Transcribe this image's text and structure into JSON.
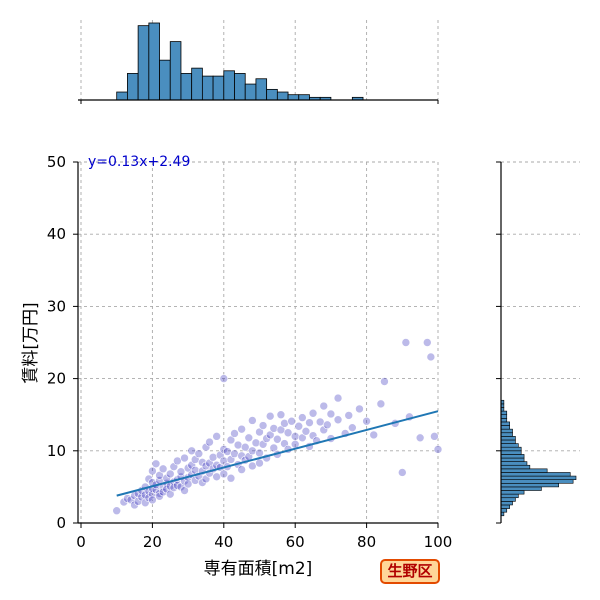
{
  "chart_data": {
    "type": "scatter",
    "title": "",
    "xlabel": "専有面積[m2]",
    "ylabel": "賃料[万円]",
    "xlim": [
      0,
      100
    ],
    "ylim": [
      0,
      50
    ],
    "x_ticks": [
      "0",
      "20",
      "40",
      "60",
      "80",
      "100"
    ],
    "y_ticks": [
      "0",
      "10",
      "20",
      "30",
      "40",
      "50"
    ],
    "grid": true,
    "regression": {
      "label": "y=0.13x+2.49",
      "slope": 0.13,
      "intercept": 2.49,
      "x_range": [
        10,
        100
      ]
    },
    "badge": "生野区",
    "colors": {
      "points": "#3f38c0",
      "line": "#1f77b4",
      "bars": "#4a8ebf",
      "equation": "#0000cc",
      "badge_fill": "#ffd699",
      "badge_border": "#e34a00"
    },
    "series": [
      {
        "points": [
          [
            10,
            1.7
          ],
          [
            12,
            2.9
          ],
          [
            13,
            3.4
          ],
          [
            14,
            3.2
          ],
          [
            15,
            3.8
          ],
          [
            15,
            2.5
          ],
          [
            16,
            4.1
          ],
          [
            16,
            3.0
          ],
          [
            17,
            3.6
          ],
          [
            17,
            4.5
          ],
          [
            18,
            3.9
          ],
          [
            18,
            5.0
          ],
          [
            18,
            2.8
          ],
          [
            19,
            4.4
          ],
          [
            19,
            6.1
          ],
          [
            19,
            3.5
          ],
          [
            20,
            4.0
          ],
          [
            20,
            4.8
          ],
          [
            20,
            5.6
          ],
          [
            20,
            3.2
          ],
          [
            20,
            7.2
          ],
          [
            21,
            4.6
          ],
          [
            21,
            5.3
          ],
          [
            21,
            8.2
          ],
          [
            22,
            4.1
          ],
          [
            22,
            5.9
          ],
          [
            22,
            6.6
          ],
          [
            22,
            3.7
          ],
          [
            23,
            5.0
          ],
          [
            23,
            4.3
          ],
          [
            23,
            7.5
          ],
          [
            24,
            5.5
          ],
          [
            24,
            6.2
          ],
          [
            24,
            4.7
          ],
          [
            25,
            5.1
          ],
          [
            25,
            6.8
          ],
          [
            25,
            4.0
          ],
          [
            26,
            5.7
          ],
          [
            26,
            7.8
          ],
          [
            26,
            4.9
          ],
          [
            27,
            6.0
          ],
          [
            27,
            5.2
          ],
          [
            27,
            8.6
          ],
          [
            28,
            6.4
          ],
          [
            28,
            5.0
          ],
          [
            28,
            7.1
          ],
          [
            29,
            5.8
          ],
          [
            29,
            9.0
          ],
          [
            29,
            4.5
          ],
          [
            30,
            6.3
          ],
          [
            30,
            7.6
          ],
          [
            30,
            5.4
          ],
          [
            31,
            8.0
          ],
          [
            31,
            6.7
          ],
          [
            31,
            10.0
          ],
          [
            32,
            5.9
          ],
          [
            32,
            7.3
          ],
          [
            32,
            8.8
          ],
          [
            33,
            6.5
          ],
          [
            33,
            9.6
          ],
          [
            34,
            7.2
          ],
          [
            34,
            5.6
          ],
          [
            34,
            8.4
          ],
          [
            35,
            7.9
          ],
          [
            35,
            6.1
          ],
          [
            35,
            10.5
          ],
          [
            36,
            8.3
          ],
          [
            36,
            6.9
          ],
          [
            36,
            11.2
          ],
          [
            37,
            7.5
          ],
          [
            37,
            9.1
          ],
          [
            38,
            8.0
          ],
          [
            38,
            6.4
          ],
          [
            38,
            12.0
          ],
          [
            39,
            9.4
          ],
          [
            39,
            7.7
          ],
          [
            40,
            8.6
          ],
          [
            40,
            10.2
          ],
          [
            40,
            6.8
          ],
          [
            40,
            20.0
          ],
          [
            41,
            9.9
          ],
          [
            41,
            7.8
          ],
          [
            42,
            8.8
          ],
          [
            42,
            11.5
          ],
          [
            42,
            6.2
          ],
          [
            43,
            9.6
          ],
          [
            43,
            12.4
          ],
          [
            44,
            8.1
          ],
          [
            44,
            10.8
          ],
          [
            45,
            9.3
          ],
          [
            45,
            13.0
          ],
          [
            45,
            7.4
          ],
          [
            46,
            10.5
          ],
          [
            46,
            8.7
          ],
          [
            47,
            11.8
          ],
          [
            47,
            9.2
          ],
          [
            48,
            10.0
          ],
          [
            48,
            14.2
          ],
          [
            48,
            7.9
          ],
          [
            49,
            11.1
          ],
          [
            50,
            9.7
          ],
          [
            50,
            12.6
          ],
          [
            50,
            8.3
          ],
          [
            51,
            10.9
          ],
          [
            51,
            13.5
          ],
          [
            52,
            11.7
          ],
          [
            52,
            9.0
          ],
          [
            53,
            12.2
          ],
          [
            53,
            14.8
          ],
          [
            54,
            10.4
          ],
          [
            54,
            13.1
          ],
          [
            55,
            11.6
          ],
          [
            55,
            9.5
          ],
          [
            56,
            12.9
          ],
          [
            56,
            15.0
          ],
          [
            57,
            11.0
          ],
          [
            57,
            13.8
          ],
          [
            58,
            12.5
          ],
          [
            58,
            10.2
          ],
          [
            59,
            14.1
          ],
          [
            60,
            12.0
          ],
          [
            60,
            10.9
          ],
          [
            61,
            13.4
          ],
          [
            62,
            11.8
          ],
          [
            62,
            14.6
          ],
          [
            63,
            12.7
          ],
          [
            64,
            10.6
          ],
          [
            64,
            13.9
          ],
          [
            65,
            15.2
          ],
          [
            65,
            12.1
          ],
          [
            66,
            11.4
          ],
          [
            67,
            14.0
          ],
          [
            68,
            16.2
          ],
          [
            68,
            12.9
          ],
          [
            69,
            13.6
          ],
          [
            70,
            11.7
          ],
          [
            70,
            15.1
          ],
          [
            72,
            14.3
          ],
          [
            72,
            17.3
          ],
          [
            74,
            12.4
          ],
          [
            75,
            14.9
          ],
          [
            76,
            13.2
          ],
          [
            78,
            15.8
          ],
          [
            80,
            14.1
          ],
          [
            82,
            12.2
          ],
          [
            84,
            16.5
          ],
          [
            85,
            19.6
          ],
          [
            88,
            13.8
          ],
          [
            90,
            7.0
          ],
          [
            91,
            25.0
          ],
          [
            92,
            14.7
          ],
          [
            95,
            11.8
          ],
          [
            97,
            25.0
          ],
          [
            98,
            23.0
          ],
          [
            99,
            12.0
          ],
          [
            100,
            10.2
          ]
        ]
      }
    ],
    "top_hist": {
      "bins": [
        10,
        13,
        16,
        19,
        22,
        25,
        28,
        31,
        34,
        37,
        40,
        43,
        46,
        49,
        52,
        55,
        58,
        61,
        64,
        67,
        70,
        73,
        76,
        79,
        82,
        85,
        88,
        91,
        94,
        97,
        100
      ],
      "counts": [
        3,
        10,
        28,
        29,
        15,
        22,
        10,
        12,
        9,
        9,
        11,
        10,
        6,
        8,
        4,
        3,
        2,
        2,
        1,
        1,
        0,
        0,
        1,
        0,
        0,
        0,
        0,
        0,
        0,
        0
      ]
    },
    "right_hist": {
      "bins": [
        1,
        1.5,
        2,
        2.5,
        3,
        3.5,
        4,
        4.5,
        5,
        5.5,
        6,
        6.5,
        7,
        7.5,
        8,
        8.5,
        9,
        9.5,
        10,
        10.5,
        11,
        11.5,
        12,
        12.5,
        13,
        13.5,
        14,
        14.5,
        15,
        15.5,
        16,
        16.5,
        17
      ],
      "counts": [
        1,
        2,
        3,
        4,
        5,
        6,
        8,
        14,
        20,
        25,
        26,
        24,
        16,
        10,
        9,
        8,
        8,
        7,
        7,
        6,
        5,
        5,
        4,
        4,
        3,
        3,
        2,
        2,
        2,
        1,
        1,
        1
      ]
    }
  }
}
